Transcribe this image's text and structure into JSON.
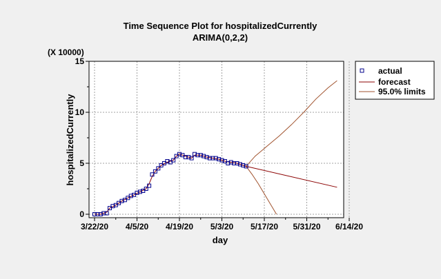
{
  "chart_data": {
    "type": "line",
    "title": "Time Sequence Plot for hospitalizedCurrently",
    "subtitle": "ARIMA(0,2,2)",
    "xlabel": "day",
    "ylabel": "hospitalizedCurrently",
    "y_scale_label": "(X 10000)",
    "xlim": [
      "2020-03-22",
      "2020-06-14"
    ],
    "ylim": [
      0,
      15
    ],
    "x_ticks": [
      "2020-03-22",
      "2020-04-05",
      "2020-04-19",
      "2020-05-03",
      "2020-05-17",
      "2020-05-31",
      "2020-06-14"
    ],
    "x_tick_labels": [
      "3/22/20",
      "4/5/20",
      "4/19/20",
      "5/3/20",
      "5/17/20",
      "5/31/20",
      "6/14/20"
    ],
    "y_ticks": [
      0,
      5,
      10,
      15
    ],
    "grid": true,
    "legend_position": "right",
    "series": [
      {
        "name": "actual",
        "style": "square-marker",
        "color": "#00008b",
        "points": [
          [
            "2020-03-22",
            0.0
          ],
          [
            "2020-03-23",
            0.0
          ],
          [
            "2020-03-24",
            0.0
          ],
          [
            "2020-03-25",
            0.1
          ],
          [
            "2020-03-26",
            0.1
          ],
          [
            "2020-03-27",
            0.6
          ],
          [
            "2020-03-28",
            0.8
          ],
          [
            "2020-03-29",
            0.9
          ],
          [
            "2020-03-30",
            1.1
          ],
          [
            "2020-03-31",
            1.3
          ],
          [
            "2020-04-01",
            1.4
          ],
          [
            "2020-04-02",
            1.6
          ],
          [
            "2020-04-03",
            1.8
          ],
          [
            "2020-04-04",
            1.9
          ],
          [
            "2020-04-05",
            2.1
          ],
          [
            "2020-04-06",
            2.2
          ],
          [
            "2020-04-07",
            2.3
          ],
          [
            "2020-04-08",
            2.5
          ],
          [
            "2020-04-09",
            2.8
          ],
          [
            "2020-04-10",
            3.9
          ],
          [
            "2020-04-11",
            4.2
          ],
          [
            "2020-04-12",
            4.5
          ],
          [
            "2020-04-13",
            4.8
          ],
          [
            "2020-04-14",
            5.0
          ],
          [
            "2020-04-15",
            5.2
          ],
          [
            "2020-04-16",
            5.1
          ],
          [
            "2020-04-17",
            5.3
          ],
          [
            "2020-04-18",
            5.7
          ],
          [
            "2020-04-19",
            5.9
          ],
          [
            "2020-04-20",
            5.8
          ],
          [
            "2020-04-21",
            5.6
          ],
          [
            "2020-04-22",
            5.6
          ],
          [
            "2020-04-23",
            5.5
          ],
          [
            "2020-04-24",
            5.9
          ],
          [
            "2020-04-25",
            5.8
          ],
          [
            "2020-04-26",
            5.8
          ],
          [
            "2020-04-27",
            5.7
          ],
          [
            "2020-04-28",
            5.6
          ],
          [
            "2020-04-29",
            5.5
          ],
          [
            "2020-04-30",
            5.5
          ],
          [
            "2020-05-01",
            5.5
          ],
          [
            "2020-05-02",
            5.4
          ],
          [
            "2020-05-03",
            5.3
          ],
          [
            "2020-05-04",
            5.2
          ],
          [
            "2020-05-05",
            5.0
          ],
          [
            "2020-05-06",
            5.1
          ],
          [
            "2020-05-07",
            5.0
          ],
          [
            "2020-05-08",
            5.0
          ],
          [
            "2020-05-09",
            4.9
          ],
          [
            "2020-05-10",
            4.8
          ],
          [
            "2020-05-11",
            4.7
          ]
        ]
      },
      {
        "name": "forecast",
        "style": "line",
        "color": "#8b0000",
        "points": [
          [
            "2020-03-22",
            0.0
          ],
          [
            "2020-03-24",
            0.0
          ],
          [
            "2020-03-26",
            0.2
          ],
          [
            "2020-03-27",
            0.6
          ],
          [
            "2020-03-29",
            0.9
          ],
          [
            "2020-03-31",
            1.3
          ],
          [
            "2020-04-02",
            1.6
          ],
          [
            "2020-04-04",
            1.9
          ],
          [
            "2020-04-06",
            2.2
          ],
          [
            "2020-04-08",
            2.5
          ],
          [
            "2020-04-09",
            3.0
          ],
          [
            "2020-04-10",
            3.7
          ],
          [
            "2020-04-11",
            4.2
          ],
          [
            "2020-04-13",
            4.8
          ],
          [
            "2020-04-15",
            5.1
          ],
          [
            "2020-04-17",
            5.3
          ],
          [
            "2020-04-18",
            5.7
          ],
          [
            "2020-04-19",
            5.9
          ],
          [
            "2020-04-21",
            5.7
          ],
          [
            "2020-04-23",
            5.5
          ],
          [
            "2020-04-24",
            5.8
          ],
          [
            "2020-04-26",
            5.8
          ],
          [
            "2020-04-28",
            5.6
          ],
          [
            "2020-04-30",
            5.5
          ],
          [
            "2020-05-02",
            5.4
          ],
          [
            "2020-05-04",
            5.2
          ],
          [
            "2020-05-06",
            5.1
          ],
          [
            "2020-05-08",
            5.0
          ],
          [
            "2020-05-10",
            4.8
          ],
          [
            "2020-05-11",
            4.7
          ],
          [
            "2020-06-10",
            2.65
          ]
        ]
      },
      {
        "name": "95.0% limits",
        "style": "line",
        "color": "#a0522d",
        "band": {
          "upper": [
            [
              "2020-05-11",
              4.7
            ],
            [
              "2020-05-14",
              5.7
            ],
            [
              "2020-05-18",
              6.7
            ],
            [
              "2020-05-22",
              7.7
            ],
            [
              "2020-05-26",
              8.8
            ],
            [
              "2020-05-30",
              10.0
            ],
            [
              "2020-06-03",
              11.3
            ],
            [
              "2020-06-07",
              12.4
            ],
            [
              "2020-06-10",
              13.1
            ]
          ],
          "lower": [
            [
              "2020-05-11",
              4.7
            ],
            [
              "2020-05-13",
              3.9
            ],
            [
              "2020-05-15",
              3.0
            ],
            [
              "2020-05-17",
              2.0
            ],
            [
              "2020-05-19",
              1.0
            ],
            [
              "2020-05-21",
              0.0
            ]
          ]
        }
      }
    ]
  }
}
